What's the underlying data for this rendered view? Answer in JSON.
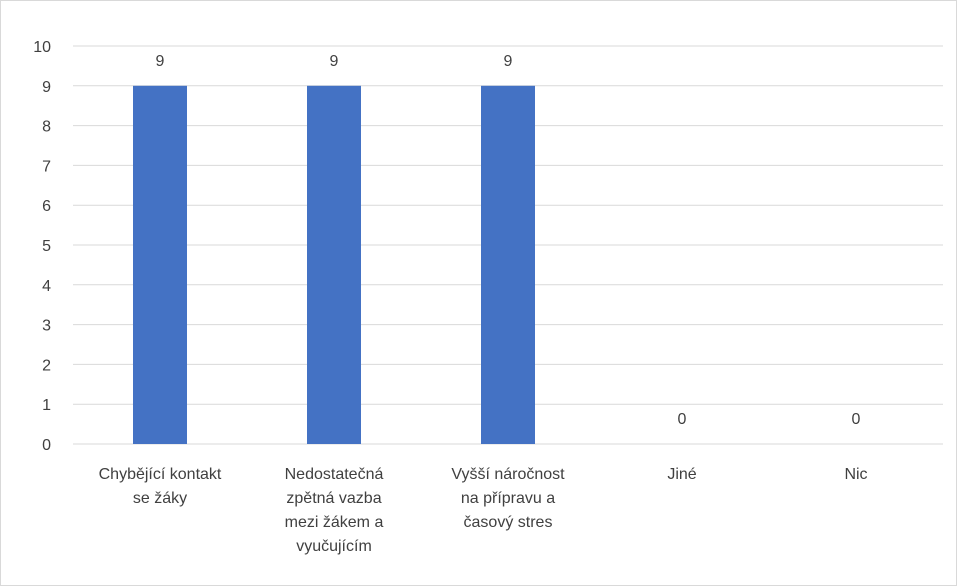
{
  "chart_data": {
    "type": "bar",
    "title": "",
    "xlabel": "",
    "ylabel": "",
    "categories": [
      [
        "Chybějící kontakt",
        "se žáky"
      ],
      [
        "Nedostatečná",
        "zpětná vazba",
        "mezi žákem a",
        "vyučujícím"
      ],
      [
        "Vyšší náročnost",
        "na přípravu a",
        "časový stres"
      ],
      [
        "Jiné"
      ],
      [
        "Nic"
      ]
    ],
    "values": [
      9,
      9,
      9,
      0,
      0
    ],
    "data_labels": [
      "9",
      "9",
      "9",
      "0",
      "0"
    ],
    "ylim": [
      0,
      10
    ],
    "yticks": [
      "0",
      "1",
      "2",
      "3",
      "4",
      "5",
      "6",
      "7",
      "8",
      "9",
      "10"
    ],
    "grid": true,
    "legend": "none",
    "colors": {
      "bar": "#4472c4",
      "grid": "#d9d9d9",
      "text": "#404040"
    }
  }
}
